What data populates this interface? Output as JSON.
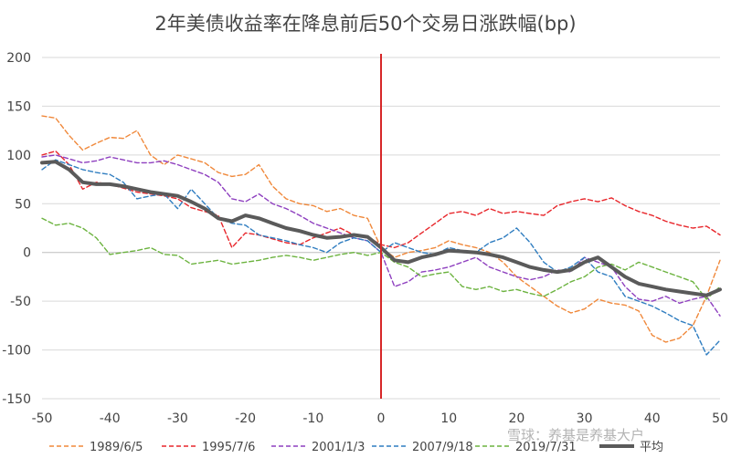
{
  "chart_data": {
    "type": "line",
    "title": "2年美债收益率在降息前后50个交易日涨跌幅(bp)",
    "xlabel": "",
    "ylabel": "",
    "xlim": [
      -50,
      50
    ],
    "ylim": [
      -150,
      200
    ],
    "x_ticks": [
      -50,
      -40,
      -30,
      -20,
      -10,
      0,
      10,
      20,
      30,
      40,
      50
    ],
    "y_ticks": [
      -150,
      -100,
      -50,
      0,
      50,
      100,
      150,
      200
    ],
    "grid": "horizontal",
    "legend_position": "bottom",
    "reference_line": {
      "x": 0,
      "color": "#d62728"
    },
    "series": [
      {
        "name": "1989/6/5",
        "color": "#f0883a",
        "dash": true,
        "points": [
          [
            -50,
            140
          ],
          [
            -48,
            138
          ],
          [
            -46,
            120
          ],
          [
            -44,
            105
          ],
          [
            -42,
            112
          ],
          [
            -40,
            118
          ],
          [
            -38,
            117
          ],
          [
            -36,
            125
          ],
          [
            -34,
            100
          ],
          [
            -32,
            90
          ],
          [
            -30,
            100
          ],
          [
            -28,
            96
          ],
          [
            -26,
            92
          ],
          [
            -24,
            82
          ],
          [
            -22,
            78
          ],
          [
            -20,
            80
          ],
          [
            -18,
            90
          ],
          [
            -16,
            68
          ],
          [
            -14,
            55
          ],
          [
            -12,
            50
          ],
          [
            -10,
            48
          ],
          [
            -8,
            42
          ],
          [
            -6,
            45
          ],
          [
            -4,
            38
          ],
          [
            -2,
            35
          ],
          [
            0,
            5
          ],
          [
            2,
            -5
          ],
          [
            4,
            0
          ],
          [
            6,
            2
          ],
          [
            8,
            5
          ],
          [
            10,
            12
          ],
          [
            12,
            8
          ],
          [
            14,
            5
          ],
          [
            16,
            0
          ],
          [
            18,
            -10
          ],
          [
            20,
            -25
          ],
          [
            22,
            -35
          ],
          [
            24,
            -45
          ],
          [
            26,
            -55
          ],
          [
            28,
            -62
          ],
          [
            30,
            -58
          ],
          [
            32,
            -48
          ],
          [
            34,
            -52
          ],
          [
            36,
            -54
          ],
          [
            38,
            -60
          ],
          [
            40,
            -85
          ],
          [
            42,
            -92
          ],
          [
            44,
            -88
          ],
          [
            46,
            -75
          ],
          [
            48,
            -45
          ],
          [
            50,
            -8
          ]
        ]
      },
      {
        "name": "1995/7/6",
        "color": "#e8262b",
        "dash": true,
        "points": [
          [
            -50,
            100
          ],
          [
            -48,
            104
          ],
          [
            -46,
            90
          ],
          [
            -44,
            65
          ],
          [
            -42,
            72
          ],
          [
            -40,
            70
          ],
          [
            -38,
            66
          ],
          [
            -36,
            62
          ],
          [
            -34,
            60
          ],
          [
            -32,
            58
          ],
          [
            -30,
            55
          ],
          [
            -28,
            46
          ],
          [
            -26,
            42
          ],
          [
            -24,
            38
          ],
          [
            -22,
            5
          ],
          [
            -20,
            20
          ],
          [
            -18,
            18
          ],
          [
            -16,
            14
          ],
          [
            -14,
            10
          ],
          [
            -12,
            8
          ],
          [
            -10,
            15
          ],
          [
            -8,
            20
          ],
          [
            -6,
            25
          ],
          [
            -4,
            18
          ],
          [
            -2,
            16
          ],
          [
            0,
            8
          ],
          [
            2,
            5
          ],
          [
            4,
            10
          ],
          [
            6,
            20
          ],
          [
            8,
            30
          ],
          [
            10,
            40
          ],
          [
            12,
            42
          ],
          [
            14,
            38
          ],
          [
            16,
            45
          ],
          [
            18,
            40
          ],
          [
            20,
            42
          ],
          [
            22,
            40
          ],
          [
            24,
            38
          ],
          [
            26,
            48
          ],
          [
            28,
            52
          ],
          [
            30,
            55
          ],
          [
            32,
            52
          ],
          [
            34,
            56
          ],
          [
            36,
            48
          ],
          [
            38,
            42
          ],
          [
            40,
            38
          ],
          [
            42,
            32
          ],
          [
            44,
            28
          ],
          [
            46,
            25
          ],
          [
            48,
            27
          ],
          [
            50,
            18
          ]
        ]
      },
      {
        "name": "2001/1/3",
        "color": "#8e3fbf",
        "dash": true,
        "points": [
          [
            -50,
            98
          ],
          [
            -48,
            100
          ],
          [
            -46,
            96
          ],
          [
            -44,
            92
          ],
          [
            -42,
            94
          ],
          [
            -40,
            98
          ],
          [
            -38,
            95
          ],
          [
            -36,
            92
          ],
          [
            -34,
            92
          ],
          [
            -32,
            94
          ],
          [
            -30,
            90
          ],
          [
            -28,
            85
          ],
          [
            -26,
            80
          ],
          [
            -24,
            72
          ],
          [
            -22,
            55
          ],
          [
            -20,
            52
          ],
          [
            -18,
            60
          ],
          [
            -16,
            50
          ],
          [
            -14,
            45
          ],
          [
            -12,
            38
          ],
          [
            -10,
            30
          ],
          [
            -8,
            25
          ],
          [
            -6,
            20
          ],
          [
            -4,
            15
          ],
          [
            -2,
            12
          ],
          [
            0,
            0
          ],
          [
            2,
            -35
          ],
          [
            4,
            -30
          ],
          [
            6,
            -20
          ],
          [
            8,
            -18
          ],
          [
            10,
            -15
          ],
          [
            12,
            -10
          ],
          [
            14,
            -5
          ],
          [
            16,
            -15
          ],
          [
            18,
            -20
          ],
          [
            20,
            -25
          ],
          [
            22,
            -28
          ],
          [
            24,
            -25
          ],
          [
            26,
            -18
          ],
          [
            28,
            -20
          ],
          [
            30,
            -5
          ],
          [
            32,
            -10
          ],
          [
            34,
            -15
          ],
          [
            36,
            -35
          ],
          [
            38,
            -48
          ],
          [
            40,
            -50
          ],
          [
            42,
            -45
          ],
          [
            44,
            -52
          ],
          [
            46,
            -48
          ],
          [
            48,
            -45
          ],
          [
            50,
            -65
          ]
        ]
      },
      {
        "name": "2007/9/18",
        "color": "#2f7dc0",
        "dash": true,
        "points": [
          [
            -50,
            85
          ],
          [
            -48,
            95
          ],
          [
            -46,
            90
          ],
          [
            -44,
            85
          ],
          [
            -42,
            82
          ],
          [
            -40,
            80
          ],
          [
            -38,
            72
          ],
          [
            -36,
            55
          ],
          [
            -34,
            58
          ],
          [
            -32,
            60
          ],
          [
            -30,
            45
          ],
          [
            -28,
            65
          ],
          [
            -26,
            50
          ],
          [
            -24,
            35
          ],
          [
            -22,
            30
          ],
          [
            -20,
            28
          ],
          [
            -18,
            18
          ],
          [
            -16,
            15
          ],
          [
            -14,
            12
          ],
          [
            -12,
            8
          ],
          [
            -10,
            5
          ],
          [
            -8,
            0
          ],
          [
            -6,
            10
          ],
          [
            -4,
            15
          ],
          [
            -2,
            12
          ],
          [
            0,
            0
          ],
          [
            2,
            10
          ],
          [
            4,
            5
          ],
          [
            6,
            0
          ],
          [
            8,
            -2
          ],
          [
            10,
            5
          ],
          [
            12,
            2
          ],
          [
            14,
            0
          ],
          [
            16,
            10
          ],
          [
            18,
            15
          ],
          [
            20,
            25
          ],
          [
            22,
            10
          ],
          [
            24,
            -10
          ],
          [
            26,
            -20
          ],
          [
            28,
            -15
          ],
          [
            30,
            -5
          ],
          [
            32,
            -20
          ],
          [
            34,
            -25
          ],
          [
            36,
            -45
          ],
          [
            38,
            -50
          ],
          [
            40,
            -55
          ],
          [
            42,
            -62
          ],
          [
            44,
            -70
          ],
          [
            46,
            -75
          ],
          [
            48,
            -105
          ],
          [
            50,
            -90
          ]
        ]
      },
      {
        "name": "2019/7/31",
        "color": "#6cb33f",
        "dash": true,
        "points": [
          [
            -50,
            35
          ],
          [
            -48,
            28
          ],
          [
            -46,
            30
          ],
          [
            -44,
            25
          ],
          [
            -42,
            15
          ],
          [
            -40,
            -2
          ],
          [
            -38,
            0
          ],
          [
            -36,
            2
          ],
          [
            -34,
            5
          ],
          [
            -32,
            -2
          ],
          [
            -30,
            -3
          ],
          [
            -28,
            -12
          ],
          [
            -26,
            -10
          ],
          [
            -24,
            -8
          ],
          [
            -22,
            -12
          ],
          [
            -20,
            -10
          ],
          [
            -18,
            -8
          ],
          [
            -16,
            -5
          ],
          [
            -14,
            -3
          ],
          [
            -12,
            -5
          ],
          [
            -10,
            -8
          ],
          [
            -8,
            -5
          ],
          [
            -6,
            -2
          ],
          [
            -4,
            0
          ],
          [
            -2,
            -3
          ],
          [
            0,
            0
          ],
          [
            2,
            -10
          ],
          [
            4,
            -15
          ],
          [
            6,
            -25
          ],
          [
            8,
            -22
          ],
          [
            10,
            -20
          ],
          [
            12,
            -35
          ],
          [
            14,
            -38
          ],
          [
            16,
            -35
          ],
          [
            18,
            -40
          ],
          [
            20,
            -38
          ],
          [
            22,
            -42
          ],
          [
            24,
            -45
          ],
          [
            26,
            -38
          ],
          [
            28,
            -30
          ],
          [
            30,
            -25
          ],
          [
            32,
            -15
          ],
          [
            34,
            -12
          ],
          [
            36,
            -18
          ],
          [
            38,
            -10
          ],
          [
            40,
            -15
          ],
          [
            42,
            -20
          ],
          [
            44,
            -25
          ],
          [
            46,
            -30
          ],
          [
            48,
            -48
          ],
          [
            50,
            -35
          ]
        ]
      },
      {
        "name": "平均",
        "color": "#5a5a5a",
        "dash": false,
        "points": [
          [
            -50,
            92
          ],
          [
            -48,
            93
          ],
          [
            -46,
            85
          ],
          [
            -44,
            72
          ],
          [
            -42,
            70
          ],
          [
            -40,
            70
          ],
          [
            -38,
            68
          ],
          [
            -36,
            65
          ],
          [
            -34,
            62
          ],
          [
            -32,
            60
          ],
          [
            -30,
            58
          ],
          [
            -28,
            52
          ],
          [
            -26,
            45
          ],
          [
            -24,
            35
          ],
          [
            -22,
            32
          ],
          [
            -20,
            38
          ],
          [
            -18,
            35
          ],
          [
            -16,
            30
          ],
          [
            -14,
            25
          ],
          [
            -12,
            22
          ],
          [
            -10,
            18
          ],
          [
            -8,
            15
          ],
          [
            -6,
            16
          ],
          [
            -4,
            18
          ],
          [
            -2,
            16
          ],
          [
            0,
            5
          ],
          [
            2,
            -8
          ],
          [
            4,
            -10
          ],
          [
            6,
            -5
          ],
          [
            8,
            -2
          ],
          [
            10,
            2
          ],
          [
            12,
            1
          ],
          [
            14,
            0
          ],
          [
            16,
            -2
          ],
          [
            18,
            -5
          ],
          [
            20,
            -10
          ],
          [
            22,
            -15
          ],
          [
            24,
            -18
          ],
          [
            26,
            -20
          ],
          [
            28,
            -18
          ],
          [
            30,
            -10
          ],
          [
            32,
            -5
          ],
          [
            34,
            -15
          ],
          [
            36,
            -25
          ],
          [
            38,
            -32
          ],
          [
            40,
            -35
          ],
          [
            42,
            -38
          ],
          [
            44,
            -40
          ],
          [
            46,
            -42
          ],
          [
            48,
            -44
          ],
          [
            50,
            -38
          ]
        ]
      }
    ]
  },
  "watermark": "雪球：养基是养基大户"
}
